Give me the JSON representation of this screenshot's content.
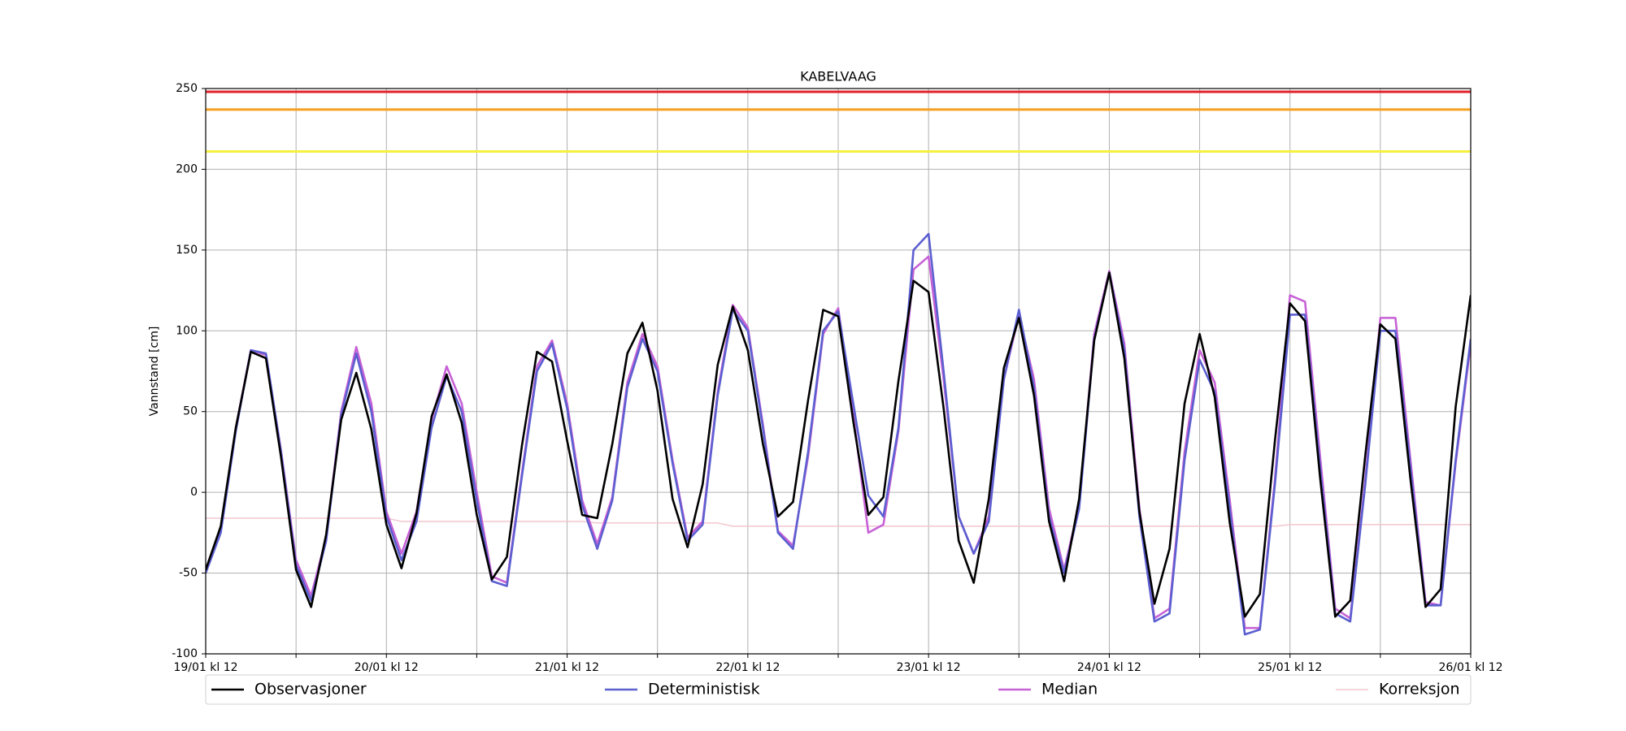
{
  "chart_data": {
    "type": "line",
    "title": "KABELVAAG",
    "ylabel": "Vannstand [cm]",
    "x": [
      0,
      2,
      4,
      6,
      8,
      10,
      12,
      14,
      16,
      18,
      20,
      22,
      24,
      26,
      28,
      30,
      32,
      34,
      36,
      38,
      40,
      42,
      44,
      46,
      48,
      50,
      52,
      54,
      56,
      58,
      60,
      62,
      64,
      66,
      68,
      70,
      72,
      74,
      76,
      78,
      80,
      82,
      84,
      86,
      88,
      90,
      92,
      94,
      96,
      98,
      100,
      102,
      104,
      106,
      108,
      110,
      112,
      114,
      116,
      118,
      120,
      122,
      124,
      126,
      128,
      130,
      132,
      134,
      136,
      138,
      140,
      142,
      144,
      146,
      148,
      150,
      152,
      154,
      156,
      158,
      160,
      162,
      164,
      166,
      168
    ],
    "series": [
      {
        "name": "Observasjoner",
        "color": "#000000",
        "values": [
          -48,
          -21,
          40,
          87,
          83,
          22,
          -48,
          -71,
          -26,
          45,
          74,
          39,
          -20,
          -47,
          -13,
          47,
          73,
          43,
          -14,
          -54,
          -40,
          29,
          87,
          81,
          32,
          -14,
          -16,
          30,
          86,
          105,
          63,
          -4,
          -34,
          5,
          79,
          115,
          88,
          30,
          -15,
          -6,
          57,
          113,
          109,
          44,
          -14,
          -3,
          69,
          131,
          124,
          52,
          -30,
          -56,
          -4,
          77,
          108,
          60,
          -18,
          -55,
          -4,
          94,
          136,
          83,
          -12,
          -69,
          -35,
          55,
          98,
          59,
          -19,
          -77,
          -63,
          32,
          117,
          106,
          9,
          -77,
          -67,
          23,
          104,
          95,
          8,
          -71,
          -60,
          53,
          122
        ]
      },
      {
        "name": "Deterministisk",
        "color": "#5c5fd0",
        "values": [
          -50,
          -25,
          38,
          88,
          86,
          25,
          -45,
          -67,
          -30,
          48,
          86,
          50,
          -15,
          -42,
          -18,
          40,
          72,
          50,
          -5,
          -55,
          -58,
          10,
          75,
          92,
          52,
          -8,
          -35,
          -5,
          65,
          95,
          75,
          18,
          -30,
          -20,
          60,
          113,
          100,
          40,
          -25,
          -35,
          25,
          100,
          112,
          55,
          -2,
          -15,
          40,
          150,
          160,
          75,
          -15,
          -38,
          -18,
          70,
          113,
          65,
          -15,
          -50,
          -10,
          95,
          136,
          88,
          -15,
          -80,
          -75,
          20,
          82,
          62,
          -10,
          -88,
          -85,
          5,
          110,
          110,
          15,
          -75,
          -80,
          5,
          100,
          100,
          15,
          -70,
          -70,
          20,
          95
        ]
      },
      {
        "name": "Median",
        "color": "#c762d6",
        "values": [
          -48,
          -22,
          40,
          88,
          85,
          26,
          -42,
          -64,
          -28,
          50,
          90,
          55,
          -12,
          -38,
          -12,
          45,
          78,
          55,
          0,
          -52,
          -56,
          12,
          78,
          94,
          55,
          -5,
          -32,
          -3,
          68,
          98,
          78,
          20,
          -28,
          -18,
          62,
          116,
          102,
          42,
          -24,
          -33,
          22,
          98,
          114,
          48,
          -25,
          -20,
          38,
          138,
          146,
          70,
          -15,
          -38,
          -15,
          70,
          110,
          70,
          -10,
          -48,
          -8,
          98,
          137,
          92,
          -10,
          -78,
          -72,
          25,
          88,
          68,
          -5,
          -84,
          -84,
          8,
          122,
          118,
          22,
          -72,
          -78,
          8,
          108,
          108,
          20,
          -68,
          -70,
          18,
          92
        ]
      },
      {
        "name": "Korreksjon",
        "color": "#f2c6cf",
        "values": [
          -16,
          -16,
          -16,
          -16,
          -16,
          -16,
          -16,
          -16,
          -16,
          -16,
          -16,
          -16,
          -16,
          -18,
          -18,
          -18,
          -18,
          -18,
          -18,
          -18,
          -18,
          -18,
          -18,
          -18,
          -18,
          -18,
          -19,
          -19,
          -19,
          -19,
          -19,
          -19,
          -19,
          -19,
          -19,
          -21,
          -21,
          -21,
          -21,
          -21,
          -21,
          -21,
          -21,
          -21,
          -21,
          -21,
          -21,
          -21,
          -21,
          -21,
          -21,
          -21,
          -21,
          -21,
          -21,
          -21,
          -21,
          -21,
          -21,
          -21,
          -21,
          -21,
          -21,
          -21,
          -21,
          -21,
          -21,
          -21,
          -21,
          -21,
          -21,
          -21,
          -20,
          -20,
          -20,
          -20,
          -20,
          -20,
          -20,
          -20,
          -20,
          -20,
          -20,
          -20,
          -20
        ]
      }
    ],
    "reference_lines": [
      {
        "value": 248,
        "color": "#e0202a"
      },
      {
        "value": 237,
        "color": "#f5a020"
      },
      {
        "value": 211,
        "color": "#f5f03a"
      }
    ],
    "xlim": [
      0,
      168
    ],
    "xticks": [
      {
        "value": 0,
        "label": "19/01 kl 12"
      },
      {
        "value": 24,
        "label": "20/01 kl 12"
      },
      {
        "value": 48,
        "label": "21/01 kl 12"
      },
      {
        "value": 72,
        "label": "22/01 kl 12"
      },
      {
        "value": 96,
        "label": "23/01 kl 12"
      },
      {
        "value": 120,
        "label": "24/01 kl 12"
      },
      {
        "value": 144,
        "label": "25/01 kl 12"
      },
      {
        "value": 168,
        "label": "26/01 kl 12"
      }
    ],
    "xticks_minor": [
      12,
      36,
      60,
      84,
      108,
      132,
      156
    ],
    "ylim": [
      -100,
      250
    ],
    "yticks": [
      -100,
      -50,
      0,
      50,
      100,
      150,
      200,
      250
    ],
    "grid": true,
    "legend": "bottom"
  }
}
